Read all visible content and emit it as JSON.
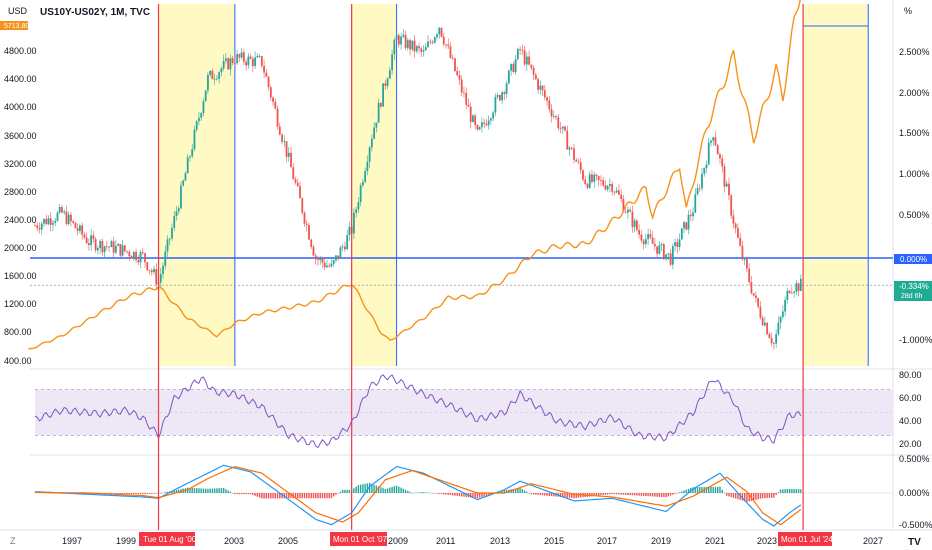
{
  "header": {
    "symbol_title": "US10Y-US02Y, 1M, TVC",
    "currency_label": "USD",
    "percent_label": "%",
    "spx_badge": "5713.80",
    "corner_left": "Z",
    "corner_right": "TV"
  },
  "colors": {
    "candle_up": "#26a69a",
    "candle_down": "#ef5350",
    "spread_line": "#f7931a",
    "zero_line": "#2962ff",
    "recession_fill": "#fff9c4",
    "event_line": "#f23645",
    "rsi_line": "#7e57c2",
    "rsi_band": "#ede7f6",
    "macd_line": "#2196f3",
    "signal_line": "#ff6d00"
  },
  "price_axis": {
    "ticks": [
      "4800.00",
      "4400.00",
      "4000.00",
      "3600.00",
      "3200.00",
      "2800.00",
      "2400.00",
      "2000.00",
      "1600.00",
      "1200.00",
      "800.00",
      "400.00"
    ]
  },
  "percent_axis": {
    "ticks": [
      "2.500%",
      "2.000%",
      "1.500%",
      "1.000%",
      "0.500%",
      "-1.000%"
    ],
    "zero_badge": "0.000%",
    "current_badge": "-0.334%",
    "countdown_badge": "28d 6h"
  },
  "rsi_axis": {
    "ticks": [
      "80.00",
      "60.00",
      "40.00",
      "20.00"
    ]
  },
  "macd_axis": {
    "ticks": [
      "0.500%",
      "0.000%",
      "-0.500%"
    ]
  },
  "time_axis": {
    "ticks": [
      "1997",
      "1999",
      "2003",
      "2005",
      "2007",
      "2009",
      "2011",
      "2013",
      "2015",
      "2017",
      "2019",
      "2021",
      "2023",
      "2027"
    ],
    "event_labels": [
      "Tue 01 Aug '00",
      "Mon 01 Oct '07",
      "Mon 01 Jul '24"
    ]
  },
  "chart_data": {
    "type": "line",
    "title": "US10Y-US02Y, 1M, TVC",
    "x_range": [
      "1995-10",
      "2027-06"
    ],
    "events": [
      "2000-08",
      "2007-10",
      "2024-07"
    ],
    "recession_shading": [
      [
        "2000-08",
        "2003-06"
      ],
      [
        "2007-10",
        "2009-06"
      ],
      [
        "2024-07",
        "2026-12"
      ]
    ],
    "series": [
      {
        "name": "US10Y-US02Y",
        "unit": "%",
        "points": [
          [
            "1996-01",
            0.4
          ],
          [
            "1997-01",
            0.55
          ],
          [
            "1998-01",
            0.2
          ],
          [
            "1999-01",
            0.12
          ],
          [
            "2000-01",
            0.02
          ],
          [
            "2000-08",
            -0.3
          ],
          [
            "2001-06",
            0.8
          ],
          [
            "2002-06",
            2.2
          ],
          [
            "2003-06",
            2.45
          ],
          [
            "2004-06",
            2.4
          ],
          [
            "2005-06",
            1.2
          ],
          [
            "2006-06",
            0.0
          ],
          [
            "2007-01",
            -0.12
          ],
          [
            "2007-10",
            0.35
          ],
          [
            "2008-06",
            1.4
          ],
          [
            "2009-06",
            2.7
          ],
          [
            "2010-06",
            2.5
          ],
          [
            "2011-01",
            2.85
          ],
          [
            "2012-06",
            1.5
          ],
          [
            "2013-06",
            2.1
          ],
          [
            "2014-01",
            2.55
          ],
          [
            "2015-06",
            1.65
          ],
          [
            "2016-06",
            0.95
          ],
          [
            "2017-06",
            0.9
          ],
          [
            "2018-06",
            0.3
          ],
          [
            "2019-08",
            0.0
          ],
          [
            "2020-06",
            0.6
          ],
          [
            "2021-03",
            1.55
          ],
          [
            "2022-03",
            0.1
          ],
          [
            "2022-10",
            -0.55
          ],
          [
            "2023-06",
            -1.05
          ],
          [
            "2024-01",
            -0.35
          ],
          [
            "2024-06",
            -0.334
          ]
        ]
      },
      {
        "name": "SPX",
        "unit": "USD",
        "points": [
          [
            "1995-10",
            600
          ],
          [
            "1997-01",
            800
          ],
          [
            "1998-07",
            1150
          ],
          [
            "1999-06",
            1350
          ],
          [
            "2000-08",
            1500
          ],
          [
            "2001-09",
            1050
          ],
          [
            "2002-10",
            800
          ],
          [
            "2003-06",
            980
          ],
          [
            "2004-06",
            1130
          ],
          [
            "2005-06",
            1200
          ],
          [
            "2006-06",
            1280
          ],
          [
            "2007-10",
            1550
          ],
          [
            "2008-11",
            850
          ],
          [
            "2009-03",
            730
          ],
          [
            "2010-06",
            1050
          ],
          [
            "2011-05",
            1340
          ],
          [
            "2012-06",
            1360
          ],
          [
            "2013-06",
            1600
          ],
          [
            "2014-06",
            1950
          ],
          [
            "2015-06",
            2080
          ],
          [
            "2016-06",
            2100
          ],
          [
            "2017-06",
            2420
          ],
          [
            "2018-09",
            2900
          ],
          [
            "2018-12",
            2500
          ],
          [
            "2019-12",
            3230
          ],
          [
            "2020-03",
            2580
          ],
          [
            "2020-12",
            3750
          ],
          [
            "2021-12",
            4770
          ],
          [
            "2022-09",
            3600
          ],
          [
            "2023-07",
            4580
          ],
          [
            "2023-10",
            4190
          ],
          [
            "2024-03",
            5250
          ],
          [
            "2024-06",
            5713.8
          ]
        ]
      }
    ],
    "rsi": {
      "name": "RSI",
      "band": [
        30,
        70
      ],
      "points": [
        [
          "1996-01",
          44
        ],
        [
          "1997-01",
          52
        ],
        [
          "1998-06",
          49
        ],
        [
          "1999-06",
          52
        ],
        [
          "2000-01",
          45
        ],
        [
          "2000-08",
          30
        ],
        [
          "2001-03",
          62
        ],
        [
          "2002-03",
          80
        ],
        [
          "2002-09",
          68
        ],
        [
          "2003-06",
          66
        ],
        [
          "2004-06",
          55
        ],
        [
          "2005-06",
          30
        ],
        [
          "2006-06",
          22
        ],
        [
          "2007-01",
          25
        ],
        [
          "2007-10",
          40
        ],
        [
          "2008-06",
          72
        ],
        [
          "2009-01",
          82
        ],
        [
          "2009-06",
          78
        ],
        [
          "2010-06",
          66
        ],
        [
          "2011-06",
          56
        ],
        [
          "2012-06",
          44
        ],
        [
          "2013-06",
          50
        ],
        [
          "2014-01",
          66
        ],
        [
          "2015-06",
          42
        ],
        [
          "2016-06",
          38
        ],
        [
          "2017-06",
          46
        ],
        [
          "2018-06",
          30
        ],
        [
          "2019-06",
          28
        ],
        [
          "2020-06",
          50
        ],
        [
          "2021-03",
          80
        ],
        [
          "2021-12",
          60
        ],
        [
          "2022-06",
          36
        ],
        [
          "2023-01",
          28
        ],
        [
          "2023-06",
          26
        ],
        [
          "2024-01",
          48
        ],
        [
          "2024-06",
          48
        ]
      ]
    },
    "macd": {
      "name": "MACD",
      "unit": "%",
      "macd_points": [
        [
          "1996-01",
          0.02
        ],
        [
          "1998-01",
          -0.02
        ],
        [
          "2000-01",
          -0.06
        ],
        [
          "2000-08",
          -0.08
        ],
        [
          "2001-09",
          0.15
        ],
        [
          "2002-06",
          0.3
        ],
        [
          "2003-01",
          0.42
        ],
        [
          "2004-01",
          0.32
        ],
        [
          "2005-06",
          -0.1
        ],
        [
          "2006-06",
          -0.4
        ],
        [
          "2007-01",
          -0.48
        ],
        [
          "2007-10",
          -0.3
        ],
        [
          "2008-06",
          0.1
        ],
        [
          "2009-06",
          0.4
        ],
        [
          "2010-06",
          0.3
        ],
        [
          "2012-06",
          -0.1
        ],
        [
          "2013-06",
          0.05
        ],
        [
          "2014-01",
          0.18
        ],
        [
          "2016-01",
          -0.12
        ],
        [
          "2017-06",
          -0.08
        ],
        [
          "2019-06",
          -0.28
        ],
        [
          "2020-06",
          0.06
        ],
        [
          "2021-06",
          0.3
        ],
        [
          "2022-06",
          -0.15
        ],
        [
          "2023-01",
          -0.4
        ],
        [
          "2023-06",
          -0.5
        ],
        [
          "2024-01",
          -0.3
        ],
        [
          "2024-06",
          -0.18
        ]
      ],
      "signal_points": [
        [
          "1996-01",
          0.01
        ],
        [
          "1998-01",
          0.0
        ],
        [
          "2000-01",
          -0.04
        ],
        [
          "2000-08",
          -0.07
        ],
        [
          "2001-09",
          0.05
        ],
        [
          "2002-06",
          0.22
        ],
        [
          "2003-06",
          0.4
        ],
        [
          "2004-06",
          0.3
        ],
        [
          "2005-06",
          0.0
        ],
        [
          "2006-06",
          -0.3
        ],
        [
          "2007-06",
          -0.44
        ],
        [
          "2008-01",
          -0.3
        ],
        [
          "2009-01",
          0.2
        ],
        [
          "2010-01",
          0.34
        ],
        [
          "2012-06",
          0.0
        ],
        [
          "2013-06",
          0.0
        ],
        [
          "2014-06",
          0.14
        ],
        [
          "2016-01",
          -0.02
        ],
        [
          "2017-06",
          -0.06
        ],
        [
          "2019-06",
          -0.2
        ],
        [
          "2020-06",
          -0.05
        ],
        [
          "2021-09",
          0.24
        ],
        [
          "2022-06",
          0.02
        ],
        [
          "2023-01",
          -0.3
        ],
        [
          "2023-09",
          -0.48
        ],
        [
          "2024-06",
          -0.25
        ]
      ]
    }
  }
}
